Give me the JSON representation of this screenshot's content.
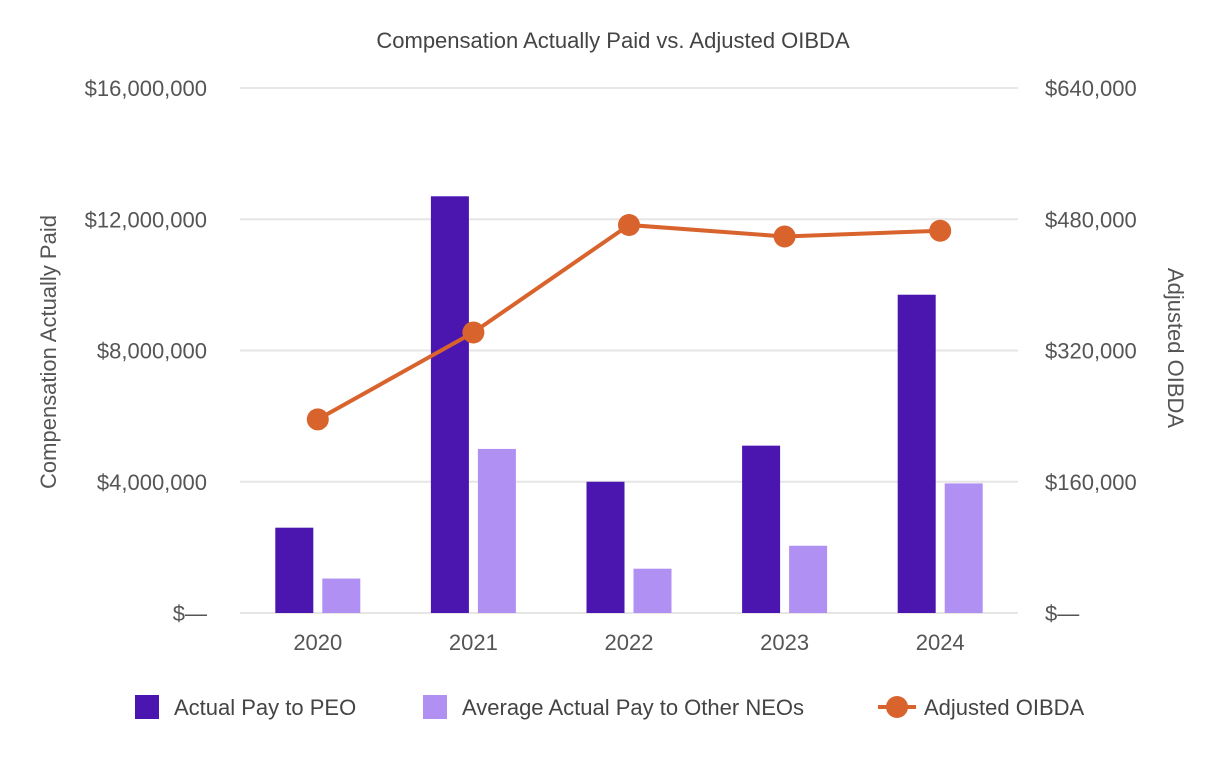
{
  "chart_data": {
    "type": "bar",
    "title": "Compensation Actually Paid vs. Adjusted OIBDA",
    "categories": [
      "2020",
      "2021",
      "2022",
      "2023",
      "2024"
    ],
    "y_left": {
      "label": "Compensation Actually Paid",
      "ticks": [
        "$—",
        "$4,000,000",
        "$8,000,000",
        "$12,000,000",
        "$16,000,000"
      ],
      "ylim": [
        0,
        16000000
      ]
    },
    "y_right": {
      "label": "Adjusted OIBDA",
      "ticks": [
        "$—",
        "$160,000",
        "$320,000",
        "$480,000",
        "$640,000"
      ],
      "ylim": [
        0,
        640000
      ]
    },
    "series": [
      {
        "name": "Actual Pay to PEO",
        "type": "bar",
        "axis": "left",
        "color": "#4B16B0",
        "values": [
          2600000,
          12700000,
          4000000,
          5100000,
          9700000
        ]
      },
      {
        "name": "Average Actual Pay to Other NEOs",
        "type": "bar",
        "axis": "left",
        "color": "#B190F3",
        "values": [
          1050000,
          5000000,
          1350000,
          2050000,
          3950000
        ]
      },
      {
        "name": "Adjusted OIBDA",
        "type": "line",
        "axis": "right",
        "color": "#D9632C",
        "values": [
          236000,
          342000,
          473000,
          459000,
          466000
        ]
      }
    ],
    "grid": true,
    "legend_position": "bottom"
  }
}
